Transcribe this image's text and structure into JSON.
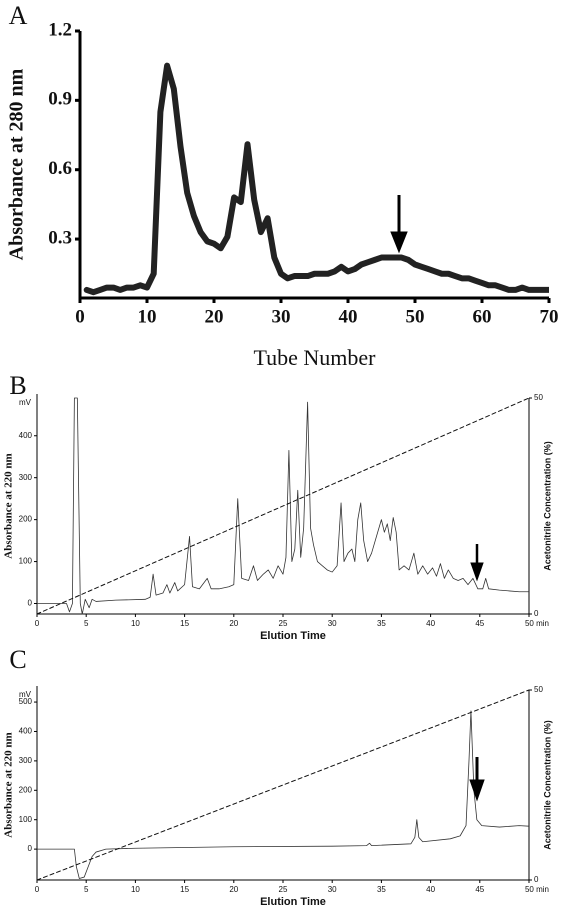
{
  "chart_data": [
    {
      "type": "line",
      "label": "A",
      "x_label": "Tube Number",
      "y_label": "Absorbance at 280 nm",
      "x": [
        1,
        2,
        3,
        4,
        5,
        6,
        7,
        8,
        9,
        10,
        11,
        12,
        13,
        14,
        15,
        16,
        17,
        18,
        19,
        20,
        21,
        22,
        23,
        24,
        25,
        26,
        27,
        28,
        29,
        30,
        31,
        32,
        33,
        34,
        35,
        36,
        37,
        38,
        39,
        40,
        41,
        42,
        43,
        44,
        45,
        46,
        47,
        48,
        49,
        50,
        51,
        52,
        53,
        54,
        55,
        56,
        57,
        58,
        59,
        60,
        61,
        62,
        63,
        64,
        65,
        66,
        67,
        68,
        69,
        70
      ],
      "series": [
        {
          "color": "#222222",
          "values": [
            0.08,
            0.07,
            0.08,
            0.09,
            0.09,
            0.08,
            0.09,
            0.09,
            0.1,
            0.09,
            0.15,
            0.85,
            1.05,
            0.95,
            0.7,
            0.5,
            0.4,
            0.33,
            0.29,
            0.28,
            0.26,
            0.31,
            0.48,
            0.46,
            0.71,
            0.47,
            0.33,
            0.39,
            0.22,
            0.15,
            0.13,
            0.14,
            0.14,
            0.14,
            0.15,
            0.15,
            0.15,
            0.16,
            0.18,
            0.16,
            0.17,
            0.19,
            0.2,
            0.21,
            0.22,
            0.22,
            0.22,
            0.22,
            0.21,
            0.19,
            0.18,
            0.17,
            0.16,
            0.15,
            0.15,
            0.14,
            0.13,
            0.13,
            0.12,
            0.11,
            0.1,
            0.1,
            0.09,
            0.08,
            0.08,
            0.09,
            0.08,
            0.08,
            0.08,
            0.08
          ]
        }
      ],
      "xlim": [
        0,
        70
      ],
      "xticks": [
        0,
        10,
        20,
        30,
        40,
        50,
        60,
        70
      ],
      "ylim": [
        0.045,
        1.2
      ],
      "yticks": [
        0.3,
        0.6,
        0.9,
        1.2
      ]
    },
    {
      "type": "line",
      "label": "B",
      "x_label": "Elution Time",
      "y_label": "Absorbance at 220 nm",
      "y_unit": "mV",
      "y2_label": "Acetonitrile Concentration (%)",
      "x": [
        0,
        3,
        3.3,
        3.6,
        3.8,
        4.1,
        4.4,
        4.6,
        4.9,
        5.3,
        5.6,
        6,
        8,
        11,
        11.5,
        11.8,
        12.1,
        12.8,
        13.2,
        13.5,
        14,
        14.3,
        15,
        15.5,
        15.8,
        16.5,
        17.3,
        17.7,
        18.5,
        19.5,
        20,
        20.4,
        20.8,
        21.5,
        22,
        22.4,
        23,
        23.5,
        24,
        24.5,
        25,
        25.3,
        25.6,
        25.9,
        26.2,
        26.5,
        26.8,
        27.1,
        27.5,
        27.8,
        28.1,
        28.5,
        29,
        29.5,
        30,
        30.5,
        30.9,
        31.2,
        31.6,
        32,
        32.3,
        32.6,
        32.9,
        33.2,
        33.6,
        34,
        34.5,
        35,
        35.3,
        35.6,
        35.9,
        36.2,
        36.5,
        36.8,
        37.3,
        37.8,
        38.3,
        38.7,
        39.2,
        39.7,
        40.2,
        40.6,
        41,
        41.4,
        41.8,
        42.3,
        42.8,
        43.3,
        43.8,
        44.3,
        44.8,
        45.3,
        45.6,
        45.9,
        47,
        48,
        49,
        50
      ],
      "series": [
        {
          "color": "#333333",
          "values": [
            0,
            0,
            -20,
            0,
            490,
            490,
            0,
            -25,
            10,
            -10,
            10,
            5,
            8,
            10,
            15,
            70,
            20,
            25,
            45,
            25,
            50,
            30,
            45,
            160,
            40,
            35,
            60,
            35,
            35,
            40,
            45,
            250,
            60,
            55,
            90,
            55,
            70,
            80,
            60,
            90,
            70,
            110,
            365,
            100,
            130,
            270,
            110,
            180,
            480,
            180,
            140,
            100,
            90,
            80,
            75,
            90,
            240,
            100,
            120,
            130,
            100,
            200,
            240,
            150,
            100,
            120,
            160,
            200,
            170,
            190,
            150,
            205,
            170,
            80,
            90,
            80,
            120,
            70,
            90,
            70,
            85,
            65,
            95,
            60,
            80,
            60,
            55,
            60,
            45,
            60,
            35,
            35,
            60,
            35,
            32,
            30,
            28,
            28
          ]
        },
        {
          "axis": "y2",
          "dashed": true,
          "color": "#111111",
          "x": [
            0,
            50
          ],
          "values": [
            0,
            50
          ]
        }
      ],
      "xlim": [
        0,
        50
      ],
      "xticks": [
        0,
        5,
        10,
        15,
        20,
        25,
        30,
        35,
        40,
        45,
        {
          "value": 50,
          "label": "50 min"
        }
      ],
      "ylim": [
        -25,
        490
      ],
      "yticks": [
        0,
        100,
        200,
        300,
        400
      ],
      "y2lim": [
        0,
        50
      ],
      "y2ticks": [
        0,
        50
      ]
    },
    {
      "type": "line",
      "label": "C",
      "x_label": "Elution Time",
      "y_label": "Absorbance at 220 nm",
      "y_unit": "mV",
      "y2_label": "Acetonitrile Concentration (%)",
      "x": [
        0,
        3.8,
        4,
        4.3,
        4.8,
        5.2,
        5.6,
        6,
        7,
        10,
        20,
        30,
        33.5,
        33.8,
        34,
        38,
        38.4,
        38.6,
        38.8,
        39.2,
        42,
        43,
        43.6,
        43.9,
        44.1,
        44.4,
        44.7,
        45.2,
        47,
        49,
        50
      ],
      "series": [
        {
          "color": "#333333",
          "values": [
            0,
            0,
            -60,
            -100,
            -95,
            -60,
            -25,
            -10,
            0,
            3,
            8,
            10,
            12,
            20,
            12,
            18,
            40,
            100,
            40,
            25,
            35,
            45,
            80,
            300,
            470,
            200,
            100,
            80,
            75,
            80,
            78
          ]
        },
        {
          "axis": "y2",
          "dashed": true,
          "color": "#111111",
          "x": [
            0,
            50
          ],
          "values": [
            0,
            50
          ]
        }
      ],
      "xlim": [
        0,
        50
      ],
      "xticks": [
        0,
        5,
        10,
        15,
        20,
        25,
        30,
        35,
        40,
        45,
        {
          "value": 50,
          "label": "50 min"
        }
      ],
      "ylim": [
        -105,
        541
      ],
      "yticks": [
        0,
        100,
        200,
        300,
        400,
        500
      ],
      "y2lim": [
        0,
        50
      ],
      "y2ticks": [
        0,
        50
      ]
    }
  ]
}
